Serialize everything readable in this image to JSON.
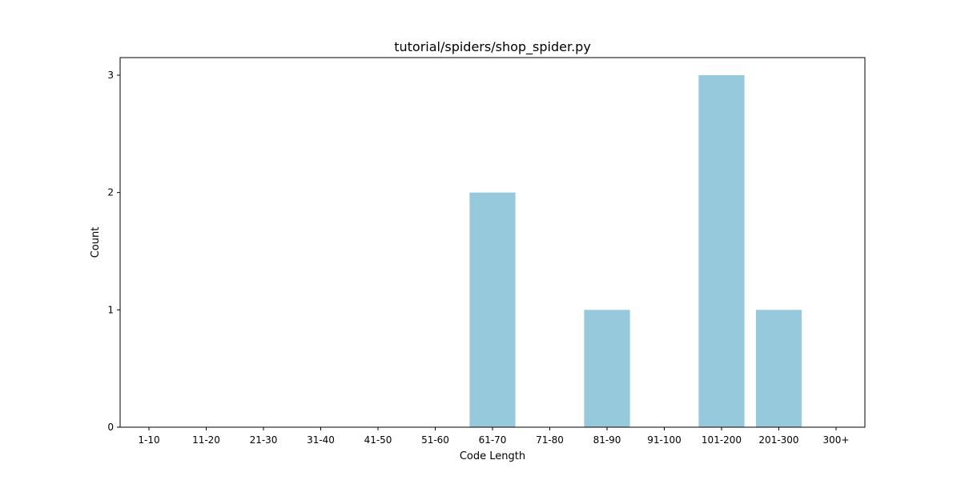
{
  "chart_data": {
    "type": "bar",
    "title": "tutorial/spiders/shop_spider.py",
    "xlabel": "Code Length",
    "ylabel": "Count",
    "categories": [
      "1-10",
      "11-20",
      "21-30",
      "31-40",
      "41-50",
      "51-60",
      "61-70",
      "71-80",
      "81-90",
      "91-100",
      "101-200",
      "201-300",
      "300+"
    ],
    "values": [
      0,
      0,
      0,
      0,
      0,
      0,
      2,
      0,
      1,
      0,
      3,
      1,
      0
    ],
    "ylim": [
      0,
      3.15
    ],
    "yticks": [
      0,
      1,
      2,
      3
    ],
    "grid": false,
    "legend": "none",
    "bar_color": "#96c9dc"
  }
}
